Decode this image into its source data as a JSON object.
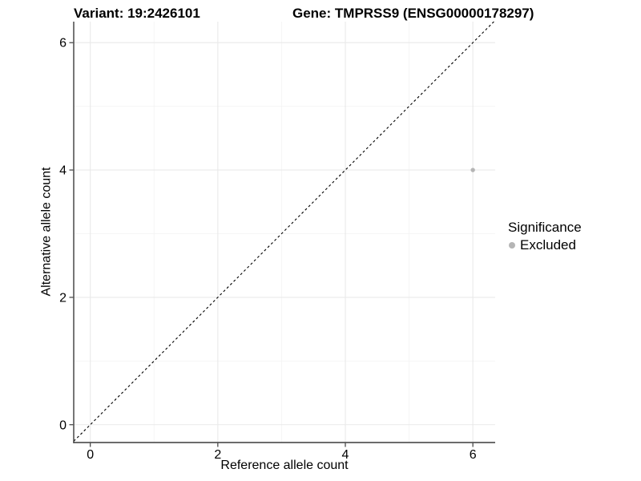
{
  "page": {
    "background": "#ffffff"
  },
  "titles": {
    "variant": "Variant: 19:2426101",
    "gene": "Gene: TMPRSS9 (ENSG00000178297)"
  },
  "legend": {
    "title": "Significance",
    "items": [
      {
        "label": "Excluded",
        "color": "#b5b5b5"
      }
    ]
  },
  "chart_data": {
    "type": "scatter",
    "title_left": "Variant: 19:2426101",
    "title_right": "Gene: TMPRSS9 (ENSG00000178297)",
    "xlabel": "Reference allele count",
    "ylabel": "Alternative allele count",
    "xlim": [
      -0.26,
      6.35
    ],
    "ylim": [
      -0.28,
      6.33
    ],
    "x_ticks": [
      0,
      2,
      4,
      6
    ],
    "y_ticks": [
      0,
      2,
      4,
      6
    ],
    "x_minor_ticks": [
      1,
      3,
      5
    ],
    "y_minor_ticks": [
      1,
      3,
      5
    ],
    "grid": true,
    "legend_position": "right-middle",
    "series": [
      {
        "name": "Excluded",
        "color": "#b5b5b5",
        "marker": "circle",
        "points": [
          [
            6,
            4
          ]
        ]
      }
    ],
    "reference_line": {
      "kind": "identity",
      "intercept": 0,
      "slope": 1,
      "style": "dashed",
      "color": "#000000"
    }
  },
  "style": {
    "grid_major_color": "#e9e9e9",
    "grid_minor_color": "#f4f4f4",
    "axis_line_color": "#3c3c3c",
    "tick_color": "#3c3c3c",
    "tick_label_color": "#000000",
    "point_color": "#b5b5b5"
  }
}
